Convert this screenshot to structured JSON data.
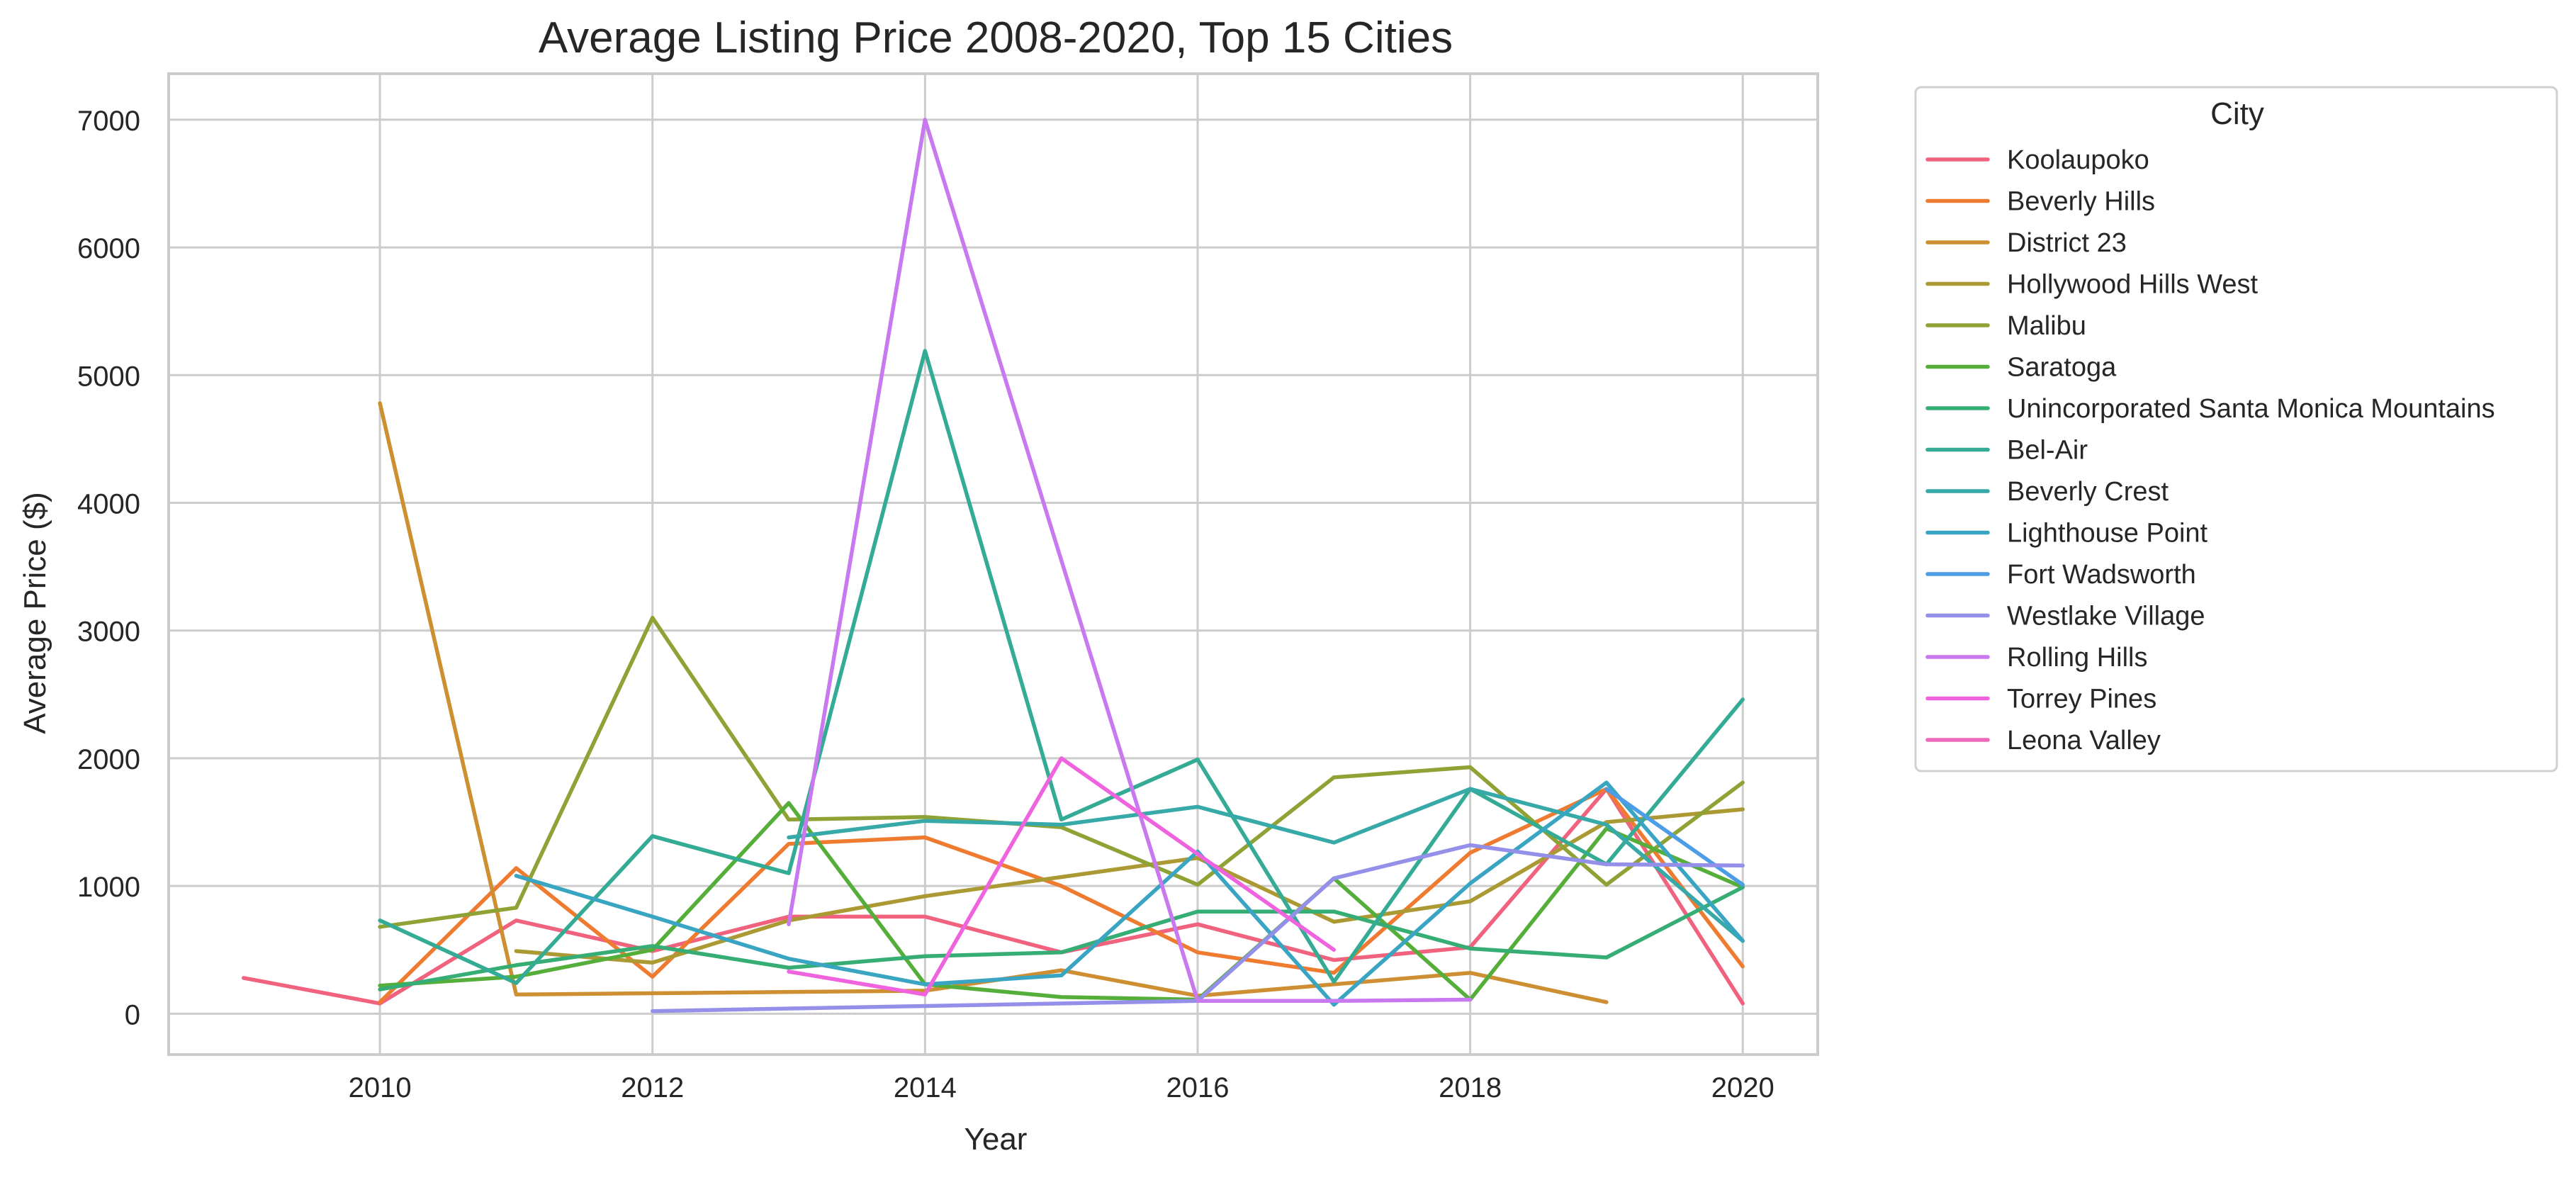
{
  "chart_data": {
    "type": "line",
    "title": "Average Listing Price 2008-2020, Top 15 Cities",
    "xlabel": "Year",
    "ylabel": "Average Price ($)",
    "xlim": [
      2008.45,
      2020.55
    ],
    "ylim": [
      -320,
      7360
    ],
    "xticks": [
      2010,
      2012,
      2014,
      2016,
      2018,
      2020
    ],
    "yticks": [
      0,
      1000,
      2000,
      3000,
      4000,
      5000,
      6000,
      7000
    ],
    "grid": true,
    "legend": {
      "title": "City",
      "placement": "outside-upper-right"
    },
    "series": [
      {
        "name": "Koolaupoko",
        "color": "#f0627e",
        "points": [
          [
            2009,
            280
          ],
          [
            2010,
            80
          ],
          [
            2011,
            730
          ],
          [
            2012,
            490
          ],
          [
            2013,
            760
          ],
          [
            2014,
            760
          ],
          [
            2015,
            480
          ],
          [
            2016,
            700
          ],
          [
            2017,
            420
          ],
          [
            2018,
            520
          ],
          [
            2019,
            1760
          ],
          [
            2020,
            80
          ]
        ]
      },
      {
        "name": "Beverly Hills",
        "color": "#ee7b30",
        "points": [
          [
            2010,
            90
          ],
          [
            2011,
            1140
          ],
          [
            2012,
            290
          ],
          [
            2013,
            1330
          ],
          [
            2014,
            1380
          ],
          [
            2015,
            1000
          ],
          [
            2016,
            480
          ],
          [
            2017,
            320
          ],
          [
            2018,
            1260
          ],
          [
            2019,
            1760
          ],
          [
            2020,
            370
          ]
        ]
      },
      {
        "name": "District 23",
        "color": "#cd8f32",
        "points": [
          [
            2010,
            4780
          ],
          [
            2011,
            150
          ],
          [
            2012,
            160
          ],
          [
            2014,
            180
          ],
          [
            2015,
            340
          ],
          [
            2016,
            140
          ],
          [
            2018,
            320
          ],
          [
            2019,
            90
          ]
        ]
      },
      {
        "name": "Hollywood Hills West",
        "color": "#ab9a33",
        "points": [
          [
            2011,
            490
          ],
          [
            2012,
            400
          ],
          [
            2013,
            730
          ],
          [
            2014,
            920
          ],
          [
            2016,
            1220
          ],
          [
            2017,
            720
          ],
          [
            2018,
            880
          ],
          [
            2019,
            1500
          ],
          [
            2020,
            1600
          ]
        ]
      },
      {
        "name": "Malibu",
        "color": "#8fa235",
        "points": [
          [
            2010,
            680
          ],
          [
            2011,
            830
          ],
          [
            2012,
            3100
          ],
          [
            2013,
            1520
          ],
          [
            2014,
            1540
          ],
          [
            2015,
            1460
          ],
          [
            2016,
            1010
          ],
          [
            2017,
            1850
          ],
          [
            2018,
            1930
          ],
          [
            2019,
            1010
          ],
          [
            2020,
            1810
          ]
        ]
      },
      {
        "name": "Saratoga",
        "color": "#56ae3a",
        "points": [
          [
            2010,
            220
          ],
          [
            2011,
            290
          ],
          [
            2012,
            500
          ],
          [
            2013,
            1650
          ],
          [
            2014,
            230
          ],
          [
            2015,
            130
          ],
          [
            2016,
            110
          ],
          [
            2017,
            1060
          ],
          [
            2018,
            110
          ],
          [
            2019,
            1450
          ],
          [
            2020,
            990
          ]
        ]
      },
      {
        "name": "Unincorporated Santa Monica Mountains",
        "color": "#36ad75",
        "points": [
          [
            2010,
            190
          ],
          [
            2011,
            380
          ],
          [
            2012,
            530
          ],
          [
            2013,
            360
          ],
          [
            2014,
            450
          ],
          [
            2015,
            480
          ],
          [
            2016,
            800
          ],
          [
            2017,
            800
          ],
          [
            2018,
            510
          ],
          [
            2019,
            440
          ],
          [
            2020,
            990
          ]
        ]
      },
      {
        "name": "Bel-Air",
        "color": "#34ab94",
        "points": [
          [
            2010,
            730
          ],
          [
            2011,
            240
          ],
          [
            2012,
            1390
          ],
          [
            2013,
            1100
          ],
          [
            2014,
            5190
          ],
          [
            2015,
            1520
          ],
          [
            2016,
            1990
          ],
          [
            2017,
            250
          ],
          [
            2018,
            1760
          ],
          [
            2019,
            1170
          ],
          [
            2020,
            2460
          ]
        ]
      },
      {
        "name": "Beverly Crest",
        "color": "#37a9a8",
        "points": [
          [
            2013,
            1380
          ],
          [
            2014,
            1510
          ],
          [
            2015,
            1480
          ],
          [
            2016,
            1620
          ],
          [
            2017,
            1340
          ],
          [
            2018,
            1760
          ],
          [
            2019,
            1480
          ],
          [
            2020,
            570
          ]
        ]
      },
      {
        "name": "Lighthouse Point",
        "color": "#3aa5c2",
        "points": [
          [
            2011,
            1080
          ],
          [
            2012,
            760
          ],
          [
            2013,
            430
          ],
          [
            2014,
            230
          ],
          [
            2015,
            300
          ],
          [
            2016,
            1270
          ],
          [
            2017,
            70
          ],
          [
            2018,
            1020
          ],
          [
            2019,
            1810
          ],
          [
            2020,
            570
          ]
        ]
      },
      {
        "name": "Fort Wadsworth",
        "color": "#4c9ce6",
        "points": [
          [
            2019,
            1760
          ],
          [
            2020,
            1010
          ]
        ]
      },
      {
        "name": "Westlake Village",
        "color": "#9490ea",
        "points": [
          [
            2012,
            20
          ],
          [
            2014,
            60
          ],
          [
            2016,
            100
          ],
          [
            2017,
            1060
          ],
          [
            2018,
            1320
          ],
          [
            2019,
            1170
          ],
          [
            2020,
            1160
          ]
        ]
      },
      {
        "name": "Rolling Hills",
        "color": "#c879ef",
        "points": [
          [
            2013,
            700
          ],
          [
            2014,
            7000
          ],
          [
            2016,
            100
          ],
          [
            2017,
            100
          ],
          [
            2018,
            110
          ]
        ]
      },
      {
        "name": "Torrey Pines",
        "color": "#ef63df",
        "points": [
          [
            2013,
            330
          ],
          [
            2014,
            150
          ],
          [
            2015,
            2000
          ],
          [
            2016,
            1250
          ],
          [
            2017,
            500
          ]
        ]
      },
      {
        "name": "Leona Valley",
        "color": "#f068b9",
        "points": []
      }
    ]
  }
}
